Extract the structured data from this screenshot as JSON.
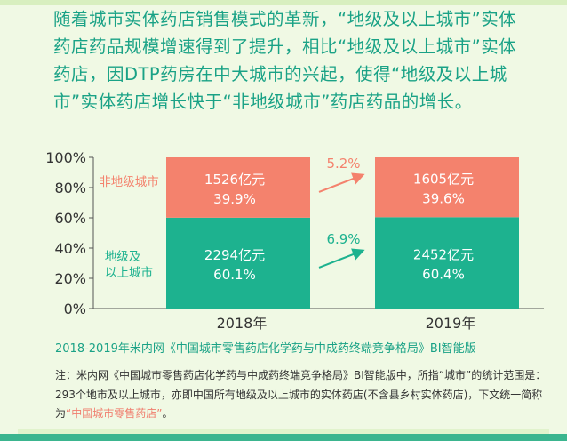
{
  "intro_text": "随着城市实体药店销售模式的革新，“地级及以上城市”实体药店药品规模增速得到了提升，相比“地级及以上城市”实体药店，因DTP药房在中大城市的兴起，使得“地级及以上城市”实体药店增长快于“非地级城市”药店药品的增长。",
  "source_text": "2018-2019年米内网《中国城市零售药店化学药与中成药终端竞争格局》BI智能版",
  "note": {
    "before": "注：米内网《中国城市零售药店化学药与中成药终端竞争格局》BI智能版中，所指“城市”的统计范围是：293个地市及以上城市，亦即中国所有地级及以上城市的实体药店(不含县乡村实体药店)，下文统一简称为",
    "highlight": "“中国城市零售药店”",
    "after": "。"
  },
  "colors": {
    "teal": "#1db28f",
    "salmon": "#f4826d",
    "text_teal": "#1aa286",
    "highlight": "#f07e6e",
    "background": "#f0f9e4"
  },
  "chart_data": {
    "type": "bar",
    "stacked": true,
    "percent_stacked": true,
    "categories": [
      "2018年",
      "2019年"
    ],
    "yticks": [
      "0%",
      "20%",
      "40%",
      "60%",
      "80%",
      "100%"
    ],
    "ylim": [
      0,
      100
    ],
    "series": [
      {
        "name": "地级及以上城市",
        "color": "#1db28f",
        "values": [
          60.1,
          60.4
        ],
        "amount_labels": [
          "2294亿元",
          "2452亿元"
        ],
        "percent_labels": [
          "60.1%",
          "60.4%"
        ],
        "growth_label": "6.9%"
      },
      {
        "name": "非地级城市",
        "color": "#f4826d",
        "values": [
          39.9,
          39.6
        ],
        "amount_labels": [
          "1526亿元",
          "1605亿元"
        ],
        "percent_labels": [
          "39.9%",
          "39.6%"
        ],
        "growth_label": "5.2%"
      }
    ],
    "legend_labels": {
      "upper": "非地级城市",
      "lower_line1": "地级及",
      "lower_line2": "以上城市"
    }
  }
}
